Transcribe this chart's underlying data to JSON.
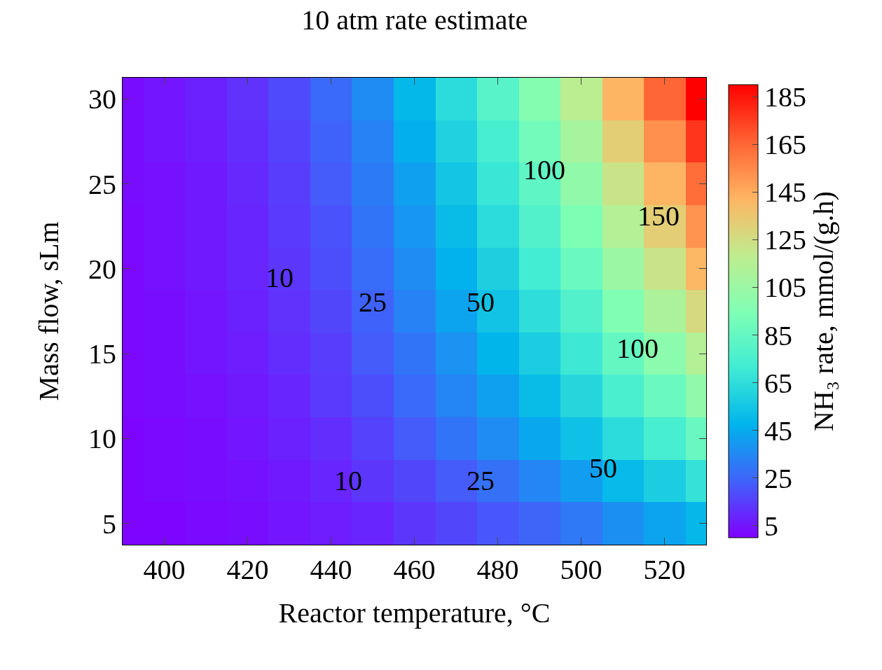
{
  "chart_data": {
    "type": "heatmap",
    "title": "10 atm rate estimate",
    "xlabel": "Reactor temperature, °C",
    "ylabel": "Mass flow, sLm",
    "clabel": "NH₃ rate, mmol/(g.h)",
    "x": [
      390,
      400,
      410,
      420,
      430,
      440,
      450,
      460,
      470,
      480,
      490,
      500,
      510,
      520,
      530
    ],
    "y_categories": [
      "30",
      null,
      "25",
      null,
      "20",
      null,
      "15",
      null,
      "10",
      null,
      "5"
    ],
    "cells": [
      [
        3,
        5,
        8,
        12,
        18,
        26,
        36,
        49,
        64,
        80,
        97,
        117,
        142,
        165,
        190
      ],
      [
        3,
        5,
        7,
        11,
        16,
        24,
        33,
        46,
        60,
        74,
        90,
        109,
        132,
        153,
        177
      ],
      [
        3,
        4,
        6,
        10,
        15,
        22,
        31,
        42,
        55,
        69,
        83,
        101,
        122,
        142,
        163
      ],
      [
        2,
        4,
        6,
        9,
        14,
        20,
        29,
        39,
        51,
        64,
        78,
        94,
        114,
        132,
        152
      ],
      [
        2,
        4,
        6,
        9,
        13,
        19,
        27,
        36,
        47,
        59,
        72,
        87,
        105,
        122,
        141
      ],
      [
        2,
        3,
        5,
        8,
        12,
        17,
        24,
        33,
        43,
        54,
        65,
        78,
        95,
        111,
        127
      ],
      [
        2,
        3,
        5,
        7,
        11,
        15,
        22,
        29,
        38,
        48,
        58,
        70,
        85,
        99,
        114
      ],
      [
        2,
        3,
        4,
        6,
        9,
        14,
        19,
        26,
        34,
        42,
        51,
        62,
        75,
        87,
        101
      ],
      [
        1,
        2,
        3,
        5,
        8,
        11,
        16,
        22,
        29,
        36,
        44,
        53,
        64,
        74,
        86
      ],
      [
        1,
        2,
        3,
        4,
        6,
        9,
        13,
        17,
        22,
        28,
        34,
        41,
        50,
        58,
        67
      ],
      [
        1,
        1,
        2,
        3,
        5,
        7,
        9,
        13,
        17,
        21,
        25,
        30,
        37,
        43,
        49
      ]
    ],
    "xlim": [
      390,
      530
    ],
    "xticks": [
      400,
      420,
      440,
      460,
      480,
      500,
      520
    ],
    "clim": [
      0,
      190
    ],
    "cticks": [
      5,
      25,
      45,
      65,
      85,
      105,
      125,
      145,
      165,
      185
    ],
    "annotations": [
      "10",
      "25",
      "50",
      "100",
      "150",
      "100",
      "10",
      "25",
      "50"
    ]
  }
}
